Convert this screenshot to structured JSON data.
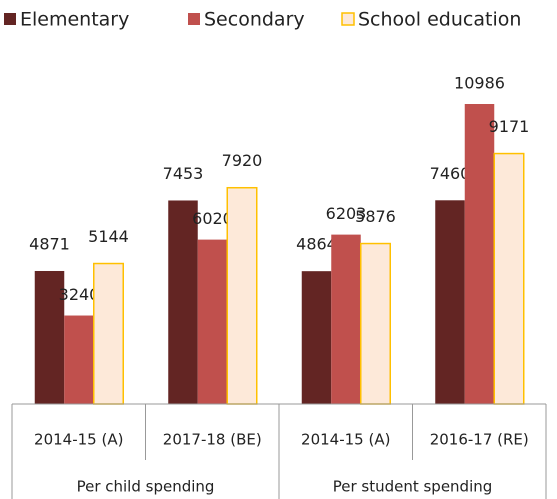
{
  "chart_data": {
    "type": "bar",
    "groups": [
      {
        "name": "Per child spending",
        "categories": [
          "2014-15 (A)",
          "2017-18 (BE)"
        ]
      },
      {
        "name": "Per student spending",
        "categories": [
          "2014-15 (A)",
          "2016-17 (RE)"
        ]
      }
    ],
    "series": [
      {
        "name": "Elementary",
        "color": "#632523",
        "values": [
          4871,
          7453,
          4864,
          7460
        ]
      },
      {
        "name": "Secondary",
        "color": "#c0504d",
        "values": [
          3240,
          6020,
          6203,
          10986
        ]
      },
      {
        "name": "School education",
        "color": "#fde9d9",
        "edge": "#ffc000",
        "values": [
          5144,
          7920,
          5876,
          9171
        ]
      }
    ],
    "legend": "top"
  }
}
